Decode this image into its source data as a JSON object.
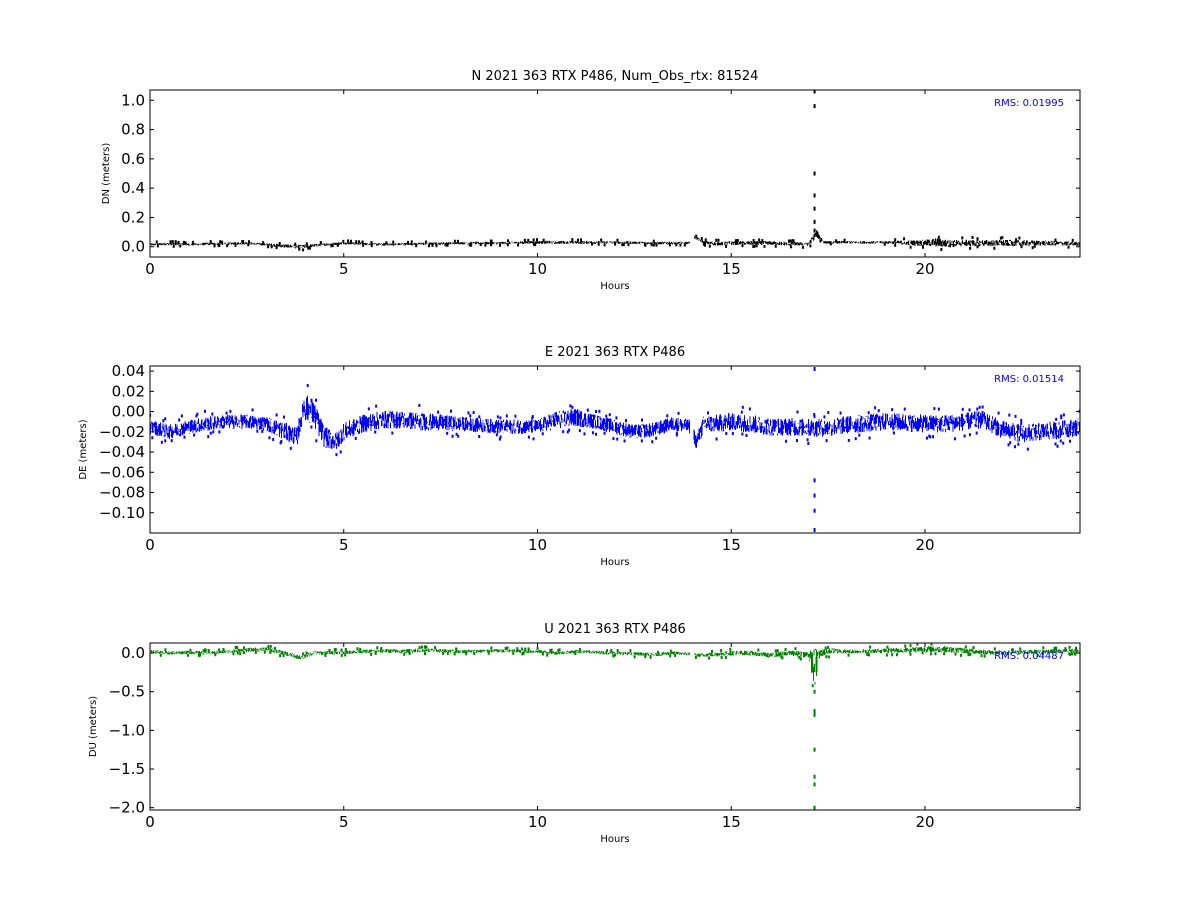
{
  "chart_data": [
    {
      "type": "scatter",
      "title": "N 2021 363 RTX  P486, Num_Obs_rtx: 81524",
      "xlabel": "Hours",
      "ylabel": "DN (meters)",
      "xlim": [
        0,
        24
      ],
      "ylim": [
        -0.07,
        1.07
      ],
      "xticks": [
        0,
        5,
        10,
        15,
        20
      ],
      "yticks": [
        0.0,
        0.2,
        0.4,
        0.6,
        0.8,
        1.0
      ],
      "ytick_labels": [
        "0.0",
        "0.2",
        "0.4",
        "0.6",
        "0.8",
        "1.0"
      ],
      "color": "#000000",
      "annotation": "RMS:  0.01995",
      "annotation_color": "#0000ff",
      "grid": false,
      "series": [
        {
          "x": [
            0,
            0.5,
            1,
            1.5,
            2,
            2.5,
            3,
            3.5,
            3.9,
            4.5,
            5,
            5.5,
            6,
            7,
            8,
            9,
            10,
            10.5,
            11,
            12,
            13,
            13.9,
            14.05,
            14.3,
            14.6,
            15,
            16,
            16.5,
            17.0,
            17.2,
            17.4,
            18,
            19,
            20,
            20.3,
            20.6,
            21,
            22,
            23,
            24
          ],
          "y": [
            0.015,
            0.02,
            0.015,
            0.02,
            0.02,
            0.025,
            0.015,
            0.005,
            0.0,
            0.015,
            0.025,
            0.02,
            0.015,
            0.02,
            0.025,
            0.025,
            0.03,
            0.03,
            0.03,
            0.03,
            0.025,
            0.025,
            0.065,
            0.03,
            0.02,
            0.025,
            0.025,
            0.02,
            0.02,
            0.09,
            0.03,
            0.03,
            0.03,
            0.025,
            0.03,
            0.02,
            0.025,
            0.025,
            0.025,
            0.02
          ],
          "spread": [
            0.01,
            0.01,
            0.01,
            0.01,
            0.01,
            0.01,
            0.01,
            0.015,
            0.015,
            0.01,
            0.01,
            0.01,
            0.01,
            0.01,
            0.01,
            0.01,
            0.012,
            0.012,
            0.012,
            0.01,
            0.01,
            0.01,
            0.012,
            0.012,
            0.015,
            0.015,
            0.015,
            0.015,
            0.015,
            0.03,
            0.01,
            0.01,
            0.01,
            0.025,
            0.035,
            0.03,
            0.025,
            0.025,
            0.02,
            0.015
          ]
        },
        {
          "x": [
            17.15,
            17.15,
            17.15,
            17.15,
            17.15,
            17.15,
            17.15
          ],
          "y": [
            1.06,
            0.96,
            0.5,
            0.35,
            0.26,
            0.17,
            0.11
          ],
          "spread": [
            0,
            0,
            0,
            0,
            0,
            0,
            0
          ]
        }
      ]
    },
    {
      "type": "scatter",
      "title": "E 2021 363 RTX  P486",
      "xlabel": "Hours",
      "ylabel": "DE (meters)",
      "xlim": [
        0,
        24
      ],
      "ylim": [
        -0.12,
        0.045
      ],
      "xticks": [
        0,
        5,
        10,
        15,
        20
      ],
      "yticks": [
        0.04,
        0.02,
        0.0,
        -0.02,
        -0.04,
        -0.06,
        -0.08,
        -0.1
      ],
      "ytick_labels": [
        "0.04",
        "0.02",
        "0.00",
        "−0.02",
        "−0.04",
        "−0.06",
        "−0.08",
        "−0.10"
      ],
      "color": "#0000ff",
      "annotation": "RMS:  0.01514",
      "annotation_color": "#0000ff",
      "grid": false,
      "series": [
        {
          "x": [
            0,
            0.5,
            1,
            1.5,
            2,
            2.5,
            3,
            3.5,
            3.8,
            3.95,
            4.2,
            4.5,
            4.8,
            5,
            5.5,
            6,
            6.5,
            7,
            8,
            9,
            10,
            10.5,
            11,
            11.5,
            12,
            12.5,
            13,
            13.5,
            13.95,
            14.1,
            14.3,
            14.6,
            15,
            15.5,
            16,
            16.5,
            17,
            17.5,
            18,
            19,
            20,
            20.5,
            21,
            21.5,
            22,
            22.5,
            23,
            23.5,
            24
          ],
          "y": [
            -0.015,
            -0.02,
            -0.015,
            -0.012,
            -0.01,
            -0.01,
            -0.012,
            -0.02,
            -0.025,
            0.005,
            0.0,
            -0.025,
            -0.03,
            -0.02,
            -0.012,
            -0.008,
            -0.008,
            -0.01,
            -0.012,
            -0.015,
            -0.015,
            -0.008,
            -0.006,
            -0.01,
            -0.015,
            -0.02,
            -0.018,
            -0.012,
            -0.015,
            -0.03,
            -0.012,
            -0.012,
            -0.01,
            -0.012,
            -0.015,
            -0.015,
            -0.016,
            -0.016,
            -0.013,
            -0.01,
            -0.012,
            -0.012,
            -0.01,
            -0.008,
            -0.018,
            -0.022,
            -0.02,
            -0.018,
            -0.015
          ],
          "spread": [
            0.008,
            0.008,
            0.008,
            0.008,
            0.008,
            0.008,
            0.008,
            0.01,
            0.01,
            0.015,
            0.015,
            0.012,
            0.01,
            0.01,
            0.01,
            0.01,
            0.01,
            0.01,
            0.008,
            0.008,
            0.008,
            0.01,
            0.01,
            0.008,
            0.008,
            0.008,
            0.008,
            0.008,
            0.008,
            0.008,
            0.01,
            0.01,
            0.01,
            0.01,
            0.01,
            0.01,
            0.01,
            0.01,
            0.01,
            0.01,
            0.01,
            0.01,
            0.01,
            0.01,
            0.01,
            0.01,
            0.01,
            0.01,
            0.01
          ]
        },
        {
          "x": [
            17.15,
            17.15,
            17.15,
            17.15,
            17.15
          ],
          "y": [
            0.042,
            -0.068,
            -0.083,
            -0.098,
            -0.117
          ],
          "spread": [
            0,
            0,
            0,
            0,
            0
          ]
        }
      ]
    },
    {
      "type": "scatter",
      "title": "U 2021 363 RTX  P486",
      "xlabel": "Hours",
      "ylabel": "DU (meters)",
      "xlim": [
        0,
        24
      ],
      "ylim": [
        -2.03,
        0.13
      ],
      "xticks": [
        0,
        5,
        10,
        15,
        20
      ],
      "yticks": [
        0.0,
        -0.5,
        -1.0,
        -1.5,
        -2.0
      ],
      "ytick_labels": [
        "0.0",
        "−0.5",
        "−1.0",
        "−1.5",
        "−2.0"
      ],
      "color": "#008000",
      "annotation": "RMS:  0.04487",
      "annotation_color": "#0000ff",
      "grid": false,
      "series": [
        {
          "x": [
            0,
            0.5,
            1,
            1.5,
            2,
            2.5,
            3,
            3.3,
            3.6,
            3.9,
            4.2,
            4.5,
            5,
            5.5,
            6,
            6.5,
            7,
            8,
            9,
            10,
            10.5,
            11,
            12,
            12.5,
            13,
            13.5,
            13.95,
            14.1,
            14.5,
            15,
            15.5,
            16,
            16.5,
            17.0,
            17.15,
            17.3,
            17.6,
            18,
            19,
            20,
            20.5,
            21,
            22,
            23,
            24
          ],
          "y": [
            0.02,
            0.0,
            0.01,
            0.0,
            0.02,
            0.04,
            0.05,
            0.02,
            -0.02,
            -0.06,
            0.0,
            0.0,
            0.01,
            0.02,
            0.03,
            0.02,
            0.04,
            0.02,
            0.03,
            0.02,
            0.0,
            0.02,
            0.0,
            -0.01,
            -0.02,
            0.0,
            -0.01,
            -0.03,
            -0.02,
            0.0,
            0.0,
            -0.03,
            0.0,
            -0.02,
            -0.2,
            0.0,
            0.03,
            0.02,
            0.03,
            0.05,
            0.05,
            0.03,
            0.0,
            0.02,
            0.03
          ],
          "spread": [
            0.025,
            0.025,
            0.025,
            0.025,
            0.025,
            0.03,
            0.03,
            0.03,
            0.03,
            0.03,
            0.03,
            0.03,
            0.025,
            0.025,
            0.03,
            0.03,
            0.03,
            0.025,
            0.025,
            0.025,
            0.025,
            0.025,
            0.025,
            0.025,
            0.025,
            0.025,
            0.025,
            0.025,
            0.035,
            0.035,
            0.035,
            0.035,
            0.035,
            0.05,
            0.3,
            0.06,
            0.04,
            0.03,
            0.035,
            0.045,
            0.045,
            0.04,
            0.035,
            0.03,
            0.03
          ]
        },
        {
          "x": [
            17.15,
            17.15,
            17.15,
            17.15,
            17.15,
            17.15,
            17.15
          ],
          "y": [
            -0.5,
            -0.75,
            -0.8,
            -1.25,
            -1.6,
            -1.7,
            -2.0
          ],
          "spread": [
            0,
            0,
            0,
            0,
            0,
            0,
            0
          ]
        }
      ]
    }
  ]
}
